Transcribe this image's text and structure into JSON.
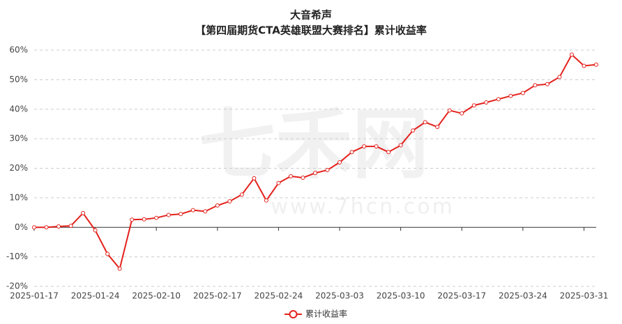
{
  "chart_data": {
    "type": "line",
    "title": "大音希声",
    "subtitle": "【第四届期货CTA英雄联盟大赛排名】累计收益率",
    "watermark": [
      "七禾网",
      "www.7hcn.com"
    ],
    "categories": [
      "2025-01-17",
      null,
      null,
      null,
      null,
      "2025-01-24",
      null,
      null,
      null,
      null,
      "2025-02-10",
      null,
      null,
      null,
      null,
      "2025-02-17",
      null,
      null,
      null,
      null,
      "2025-02-24",
      null,
      null,
      null,
      null,
      "2025-03-03",
      null,
      null,
      null,
      null,
      "2025-03-10",
      null,
      null,
      null,
      null,
      "2025-03-17",
      null,
      null,
      null,
      null,
      "2025-03-24",
      null,
      null,
      null,
      null,
      "2025-03-31",
      null
    ],
    "series": [
      {
        "name": "累计收益率",
        "color": "#e3211c",
        "values": [
          0,
          0,
          0.3,
          0.5,
          4.8,
          -1,
          -9,
          -14,
          2.6,
          2.7,
          3.2,
          4.2,
          4.5,
          5.8,
          5.4,
          7.4,
          8.8,
          11.1,
          16.6,
          9.1,
          15,
          17.3,
          16.8,
          18.4,
          19.4,
          22,
          25.5,
          27.4,
          27.4,
          25.5,
          27.8,
          32.8,
          35.6,
          34,
          39.6,
          38.6,
          41.3,
          42.3,
          43.4,
          44.5,
          45.5,
          48.1,
          48.5,
          50.9,
          58.5,
          54.7,
          55.1
        ]
      }
    ],
    "ylim": [
      -20,
      60
    ],
    "yticks": [
      {
        "value": -20,
        "label": "-20%"
      },
      {
        "value": -10,
        "label": "-10%"
      },
      {
        "value": 0,
        "label": "0%"
      },
      {
        "value": 10,
        "label": "10%"
      },
      {
        "value": 20,
        "label": "20%"
      },
      {
        "value": 30,
        "label": "30%"
      },
      {
        "value": 40,
        "label": "40%"
      },
      {
        "value": 50,
        "label": "50%"
      },
      {
        "value": 60,
        "label": "60%"
      }
    ],
    "grid": true,
    "legend": "bottom"
  }
}
